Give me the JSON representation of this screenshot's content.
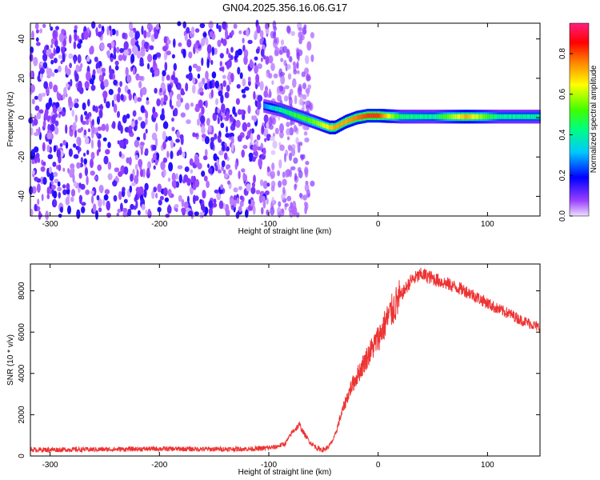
{
  "figure_title": "GN04.2025.356.16.06.G17",
  "chart_data": [
    {
      "type": "heatmap",
      "title": "GN04.2025.356.16.06.G17",
      "xlabel": "Height of straight line (km)",
      "ylabel": "Frequency (Hz)",
      "xlim": [
        -318,
        148
      ],
      "ylim": [
        -50,
        48
      ],
      "xticks": [
        -300,
        -200,
        -100,
        0,
        100
      ],
      "yticks": [
        -40,
        -20,
        0,
        20,
        40
      ],
      "colorbar": {
        "label": "Normalized spectral amplitude",
        "range": [
          0,
          0.95
        ],
        "ticks": [
          0.0,
          0.2,
          0.4,
          0.6,
          0.8
        ],
        "colormap": [
          "#e8d8ff",
          "#7000ff",
          "#0000ff",
          "#00ffff",
          "#00ff00",
          "#ffff00",
          "#ff8000",
          "#ff0000",
          "#ff2080"
        ]
      },
      "ridge": {
        "height_km": [
          -105,
          -90,
          -75,
          -60,
          -50,
          -45,
          -40,
          -30,
          -20,
          -10,
          0,
          20,
          50,
          80,
          110,
          148
        ],
        "frequency_hz": [
          6,
          4,
          1,
          -2,
          -4,
          -5,
          -5,
          -2,
          0,
          1,
          1,
          0.5,
          0.5,
          0.5,
          0.5,
          0.5
        ],
        "amplitude": [
          0.3,
          0.45,
          0.55,
          0.6,
          0.7,
          0.75,
          0.8,
          0.8,
          0.85,
          0.9,
          0.9,
          0.5,
          0.45,
          0.8,
          0.45,
          0.45
        ]
      },
      "noise_region_km": [
        -318,
        -60
      ]
    },
    {
      "type": "line",
      "title": "",
      "xlabel": "Height of straight line (km)",
      "ylabel": "SNR (10 * v/v)",
      "xlim": [
        -318,
        148
      ],
      "ylim": [
        0,
        9300
      ],
      "xticks": [
        -300,
        -200,
        -100,
        0,
        100
      ],
      "yticks": [
        0,
        2000,
        4000,
        6000,
        8000
      ],
      "series": [
        {
          "color": "#ee3333",
          "x": [
            -318,
            -250,
            -200,
            -150,
            -110,
            -95,
            -85,
            -78,
            -72,
            -68,
            -62,
            -55,
            -50,
            -45,
            -40,
            -35,
            -30,
            -25,
            -20,
            -10,
            0,
            10,
            20,
            30,
            40,
            50,
            60,
            70,
            80,
            90,
            100,
            110,
            120,
            130,
            140,
            148
          ],
          "y": [
            300,
            320,
            350,
            330,
            350,
            420,
            600,
            1200,
            1500,
            1100,
            650,
            350,
            300,
            450,
            900,
            1800,
            2600,
            3300,
            3800,
            4800,
            5700,
            6800,
            7700,
            8500,
            8800,
            8600,
            8400,
            8200,
            8000,
            7700,
            7400,
            7100,
            6900,
            6600,
            6400,
            6200
          ]
        }
      ]
    }
  ]
}
